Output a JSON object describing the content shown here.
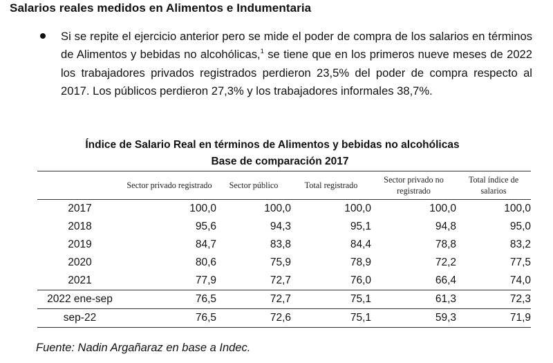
{
  "document": {
    "heading": "Salarios reales medidos en Alimentos e Indumentaria",
    "bullet": {
      "text_before_note": "Si se repite el ejercicio anterior pero se mide el poder de compra de los salarios en términos de Alimentos y bebidas no alcohólicas,",
      "footnote_ref": "1",
      "text_after_note": " se tiene que en los primeros nueve meses de 2022 los trabajadores privados registrados perdieron 23,5% del poder de compra respecto al 2017. Los públicos perdieron 27,3% y los trabajadores informales 38,7%."
    },
    "table": {
      "title": "Índice de Salario Real en términos de Alimentos y bebidas no alcohólicas",
      "subtitle": "Base de comparación 2017",
      "columns": [
        "",
        "Sector privado registrado",
        "Sector público",
        "Total registrado",
        "Sector privado no registrado",
        "Total índice de salarios"
      ],
      "rows": [
        {
          "label": "2017",
          "values": [
            "100,0",
            "100,0",
            "100,0",
            "100,0",
            "100,0"
          ]
        },
        {
          "label": "2018",
          "values": [
            "95,6",
            "94,3",
            "95,1",
            "94,8",
            "95,0"
          ]
        },
        {
          "label": "2019",
          "values": [
            "84,7",
            "83,8",
            "84,4",
            "78,8",
            "83,2"
          ]
        },
        {
          "label": "2020",
          "values": [
            "80,6",
            "75,9",
            "78,9",
            "72,2",
            "77,5"
          ]
        },
        {
          "label": "2021",
          "values": [
            "77,9",
            "72,7",
            "76,0",
            "66,4",
            "74,0"
          ]
        },
        {
          "label": "2022 ene-sep",
          "values": [
            "76,5",
            "72,7",
            "75,1",
            "61,3",
            "72,3"
          ]
        },
        {
          "label": "sep-22",
          "values": [
            "76,5",
            "72,6",
            "75,1",
            "59,3",
            "71,9"
          ]
        }
      ]
    },
    "source": "Fuente: Nadin Argañaraz en base a Indec."
  }
}
